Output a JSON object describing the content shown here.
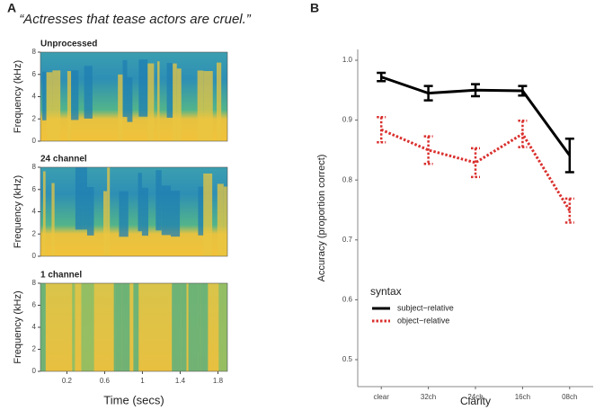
{
  "panels": [
    {
      "label": "A",
      "title": "“Actresses that tease actors are cruel.”"
    },
    {
      "label": "B"
    }
  ],
  "chart_data": [
    {
      "type": "spectrogram",
      "title": "Unprocessed",
      "ylabel": "Frequency (kHz)",
      "ylim": [
        0,
        8
      ],
      "yticks": [
        0,
        2,
        4,
        6,
        8
      ]
    },
    {
      "type": "spectrogram",
      "title": "24 channel",
      "ylabel": "Frequency (kHz)",
      "ylim": [
        0,
        8
      ],
      "yticks": [
        0,
        2,
        4,
        6,
        8
      ]
    },
    {
      "type": "spectrogram",
      "title": "1 channel",
      "ylabel": "Frequency (kHz)",
      "xlabel": "Time (secs)",
      "ylim": [
        0,
        8
      ],
      "yticks": [
        0,
        2,
        4,
        6,
        8
      ],
      "xlim": [
        -0.08,
        1.9
      ],
      "xticks": [
        0.2,
        0.6,
        1,
        1.4,
        1.8
      ]
    },
    {
      "type": "line",
      "xlabel": "Clarity",
      "ylabel": "Accuracy (proportion correct)",
      "categories": [
        "clear",
        "32ch",
        "24ch",
        "16ch",
        "08ch"
      ],
      "ylim": [
        0.455,
        1.018
      ],
      "yticks": [
        0.5,
        0.6,
        0.7,
        0.8,
        0.9,
        {
          "value": 1,
          "label": "1.0"
        }
      ],
      "legend_title": "syntax",
      "legend": "bottom-left",
      "series": [
        {
          "name": "subject−relative",
          "color": "#000000",
          "dash": "solid",
          "values": [
            0.972,
            0.945,
            0.95,
            0.949,
            0.841
          ],
          "errors": [
            0.007,
            0.012,
            0.01,
            0.008,
            0.028
          ]
        },
        {
          "name": "object−relative",
          "color": "#d9302e",
          "dash": "dotted",
          "values": [
            0.884,
            0.85,
            0.829,
            0.877,
            0.749
          ],
          "errors": [
            0.021,
            0.023,
            0.024,
            0.022,
            0.02
          ]
        }
      ]
    }
  ]
}
